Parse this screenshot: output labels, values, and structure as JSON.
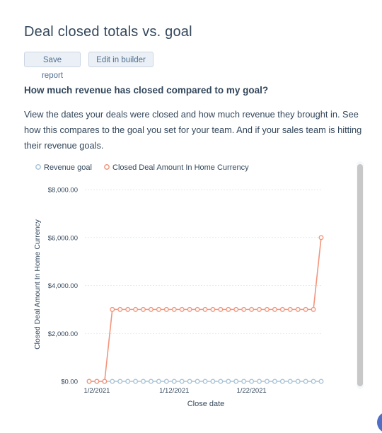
{
  "page": {
    "title": "Deal closed totals vs. goal",
    "question": "How much revenue has closed compared to my goal?",
    "description": "View the dates your deals were closed and how much revenue they brought in. See how this compares to the goal you set for your team. And if your sales team is hitting their revenue goals."
  },
  "toolbar": {
    "save_label": "Save report",
    "edit_label": "Edit in builder"
  },
  "colors": {
    "goal": "#a8c4d8",
    "closed": "#f2957c",
    "text": "#33475b",
    "grid": "#dfe3eb"
  },
  "chart_data": {
    "type": "line",
    "xlabel": "Close date",
    "ylabel": "Closed Deal Amount In Home Currency",
    "ylim": [
      0,
      8000
    ],
    "yticks": [
      "$0.00",
      "$2,000.00",
      "$4,000.00",
      "$6,000.00",
      "$8,000.00"
    ],
    "ytick_values": [
      0,
      2000,
      4000,
      6000,
      8000
    ],
    "xticks": [
      "1/2/2021",
      "1/12/2021",
      "1/22/2021"
    ],
    "xtick_days": [
      2,
      12,
      22
    ],
    "grid": true,
    "legend": "top-left",
    "x_days": [
      1,
      2,
      3,
      4,
      5,
      6,
      7,
      8,
      9,
      10,
      11,
      12,
      13,
      14,
      15,
      16,
      17,
      18,
      19,
      20,
      21,
      22,
      23,
      24,
      25,
      26,
      27,
      28,
      29,
      30,
      31
    ],
    "series": [
      {
        "name": "Revenue goal",
        "color": "#a8c4d8",
        "values": [
          0,
          0,
          0,
          0,
          0,
          0,
          0,
          0,
          0,
          0,
          0,
          0,
          0,
          0,
          0,
          0,
          0,
          0,
          0,
          0,
          0,
          0,
          0,
          0,
          0,
          0,
          0,
          0,
          0,
          0,
          0
        ]
      },
      {
        "name": "Closed Deal Amount In Home Currency",
        "color": "#f2957c",
        "values": [
          0,
          0,
          0,
          3000,
          3000,
          3000,
          3000,
          3000,
          3000,
          3000,
          3000,
          3000,
          3000,
          3000,
          3000,
          3000,
          3000,
          3000,
          3000,
          3000,
          3000,
          3000,
          3000,
          3000,
          3000,
          3000,
          3000,
          3000,
          3000,
          3000,
          6000
        ]
      }
    ]
  }
}
